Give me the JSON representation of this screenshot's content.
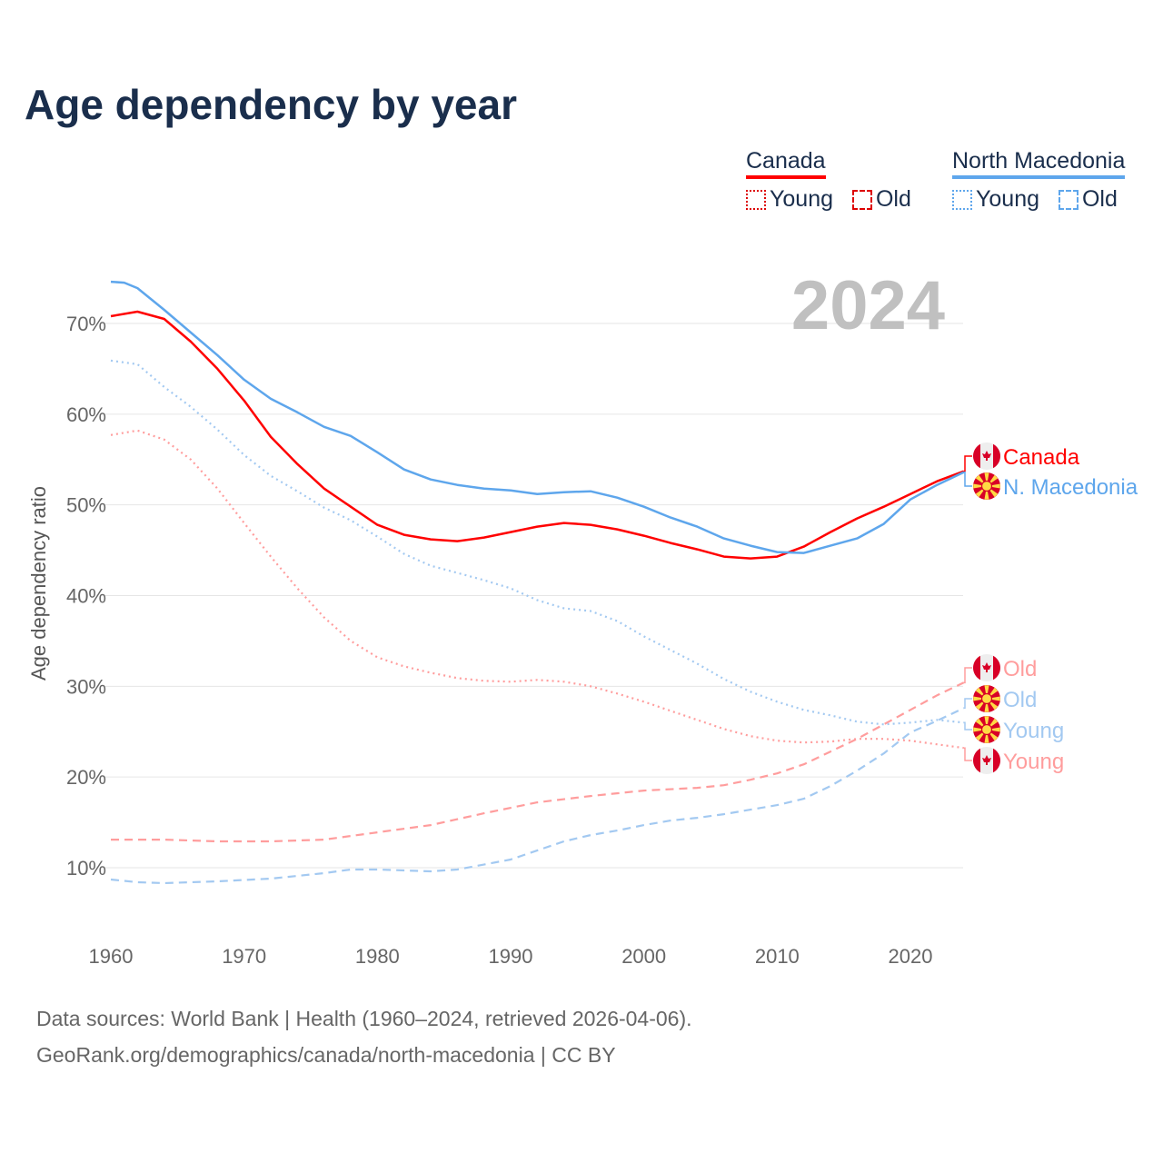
{
  "title": "Age dependency by year",
  "legend": {
    "groups": [
      {
        "name": "Canada",
        "color": "#ff0000",
        "items": [
          {
            "label": "Young",
            "style": "dotted"
          },
          {
            "label": "Old",
            "style": "dashed"
          }
        ]
      },
      {
        "name": "North Macedonia",
        "color": "#5ea6ec",
        "items": [
          {
            "label": "Young",
            "style": "dotted"
          },
          {
            "label": "Old",
            "style": "dashed"
          }
        ]
      }
    ]
  },
  "year_watermark": "2024",
  "footer": {
    "line1": "Data sources: World Bank | Health (1960–2024, retrieved 2026-04-06).",
    "line2": "GeoRank.org/demographics/canada/north-macedonia | CC BY"
  },
  "chart_data": {
    "type": "line",
    "title": "Age dependency by year",
    "xlabel": "",
    "ylabel": "Age dependency ratio",
    "xlim": [
      1960,
      2024
    ],
    "ylim": [
      3,
      78
    ],
    "grid": true,
    "x_ticks": [
      1960,
      1970,
      1980,
      1990,
      2000,
      2010,
      2020
    ],
    "y_ticks": [
      10,
      20,
      30,
      40,
      50,
      60,
      70
    ],
    "y_tick_labels": [
      "10%",
      "20%",
      "30%",
      "40%",
      "50%",
      "60%",
      "70%"
    ],
    "series": [
      {
        "name": "Canada",
        "end_label": "Canada",
        "flag": "canada",
        "color": "#ff0000",
        "style": "solid",
        "x": [
          1960,
          1962,
          1964,
          1966,
          1968,
          1970,
          1972,
          1974,
          1976,
          1978,
          1980,
          1982,
          1984,
          1986,
          1988,
          1990,
          1992,
          1994,
          1996,
          1998,
          2000,
          2002,
          2004,
          2006,
          2008,
          2010,
          2012,
          2014,
          2016,
          2018,
          2020,
          2022,
          2024
        ],
        "y": [
          70.8,
          71.3,
          70.5,
          68.0,
          65.0,
          61.5,
          57.5,
          54.5,
          51.8,
          49.8,
          47.8,
          46.7,
          46.2,
          46.0,
          46.4,
          47.0,
          47.6,
          48.0,
          47.8,
          47.3,
          46.6,
          45.8,
          45.1,
          44.3,
          44.1,
          44.3,
          45.4,
          47.0,
          48.5,
          49.8,
          51.2,
          52.6,
          53.7
        ]
      },
      {
        "name": "North Macedonia",
        "end_label": "N. Macedonia",
        "flag": "north-macedonia",
        "color": "#5ea6ec",
        "style": "solid",
        "x": [
          1960,
          1961,
          1962,
          1964,
          1966,
          1968,
          1970,
          1972,
          1974,
          1976,
          1978,
          1980,
          1982,
          1984,
          1986,
          1988,
          1990,
          1992,
          1994,
          1996,
          1998,
          2000,
          2002,
          2004,
          2006,
          2008,
          2010,
          2012,
          2014,
          2016,
          2018,
          2020,
          2022,
          2024
        ],
        "y": [
          74.6,
          74.5,
          73.9,
          71.5,
          69.0,
          66.5,
          63.8,
          61.7,
          60.2,
          58.6,
          57.6,
          55.8,
          53.9,
          52.8,
          52.2,
          51.8,
          51.6,
          51.2,
          51.4,
          51.5,
          50.8,
          49.8,
          48.6,
          47.6,
          46.3,
          45.5,
          44.8,
          44.7,
          45.5,
          46.3,
          47.9,
          50.6,
          52.2,
          53.6
        ]
      },
      {
        "name": "Canada Old",
        "end_label": "Old",
        "flag": "canada",
        "color": "#ff9d9d",
        "style": "dashed",
        "x": [
          1960,
          1964,
          1968,
          1972,
          1976,
          1980,
          1984,
          1988,
          1992,
          1996,
          2000,
          2004,
          2006,
          2008,
          2010,
          2012,
          2014,
          2016,
          2018,
          2020,
          2022,
          2024
        ],
        "y": [
          13.1,
          13.1,
          12.9,
          12.9,
          13.1,
          13.9,
          14.7,
          16.0,
          17.2,
          17.9,
          18.5,
          18.8,
          19.1,
          19.7,
          20.4,
          21.4,
          22.8,
          24.2,
          25.8,
          27.4,
          29.0,
          30.4
        ]
      },
      {
        "name": "North Macedonia Old",
        "end_label": "Old",
        "flag": "north-macedonia",
        "color": "#a3c9f1",
        "style": "dashed",
        "x": [
          1960,
          1962,
          1964,
          1968,
          1972,
          1976,
          1978,
          1980,
          1984,
          1986,
          1990,
          1994,
          1996,
          1998,
          2000,
          2002,
          2004,
          2006,
          2008,
          2010,
          2012,
          2014,
          2016,
          2018,
          2020,
          2022,
          2024
        ],
        "y": [
          8.7,
          8.4,
          8.3,
          8.5,
          8.8,
          9.4,
          9.8,
          9.8,
          9.6,
          9.8,
          10.9,
          12.9,
          13.6,
          14.1,
          14.7,
          15.2,
          15.5,
          15.9,
          16.4,
          16.9,
          17.6,
          19.0,
          20.7,
          22.6,
          24.9,
          26.2,
          27.6
        ]
      },
      {
        "name": "North Macedonia Young",
        "end_label": "Young",
        "flag": "north-macedonia",
        "color": "#a3c9f1",
        "style": "dotted",
        "x": [
          1960,
          1962,
          1964,
          1966,
          1968,
          1970,
          1972,
          1974,
          1976,
          1978,
          1980,
          1982,
          1984,
          1986,
          1988,
          1990,
          1992,
          1994,
          1996,
          1998,
          2000,
          2002,
          2004,
          2006,
          2008,
          2010,
          2012,
          2014,
          2016,
          2018,
          2020,
          2022,
          2024
        ],
        "y": [
          65.9,
          65.5,
          63.0,
          60.8,
          58.3,
          55.5,
          53.2,
          51.5,
          49.7,
          48.3,
          46.5,
          44.6,
          43.3,
          42.5,
          41.7,
          40.8,
          39.5,
          38.6,
          38.3,
          37.2,
          35.5,
          34.0,
          32.5,
          30.8,
          29.4,
          28.3,
          27.4,
          26.8,
          26.1,
          25.8,
          26.0,
          26.3,
          26.0
        ]
      },
      {
        "name": "Canada Young",
        "end_label": "Young",
        "flag": "canada",
        "color": "#ff9d9d",
        "style": "dotted",
        "x": [
          1960,
          1962,
          1964,
          1966,
          1968,
          1970,
          1972,
          1974,
          1976,
          1978,
          1980,
          1982,
          1984,
          1986,
          1988,
          1990,
          1992,
          1994,
          1996,
          1998,
          2000,
          2002,
          2004,
          2006,
          2008,
          2010,
          2012,
          2014,
          2016,
          2018,
          2020,
          2022,
          2024
        ],
        "y": [
          57.7,
          58.2,
          57.2,
          55.0,
          51.8,
          48.0,
          44.3,
          40.8,
          37.6,
          35.0,
          33.2,
          32.2,
          31.5,
          30.9,
          30.6,
          30.5,
          30.7,
          30.5,
          30.0,
          29.2,
          28.3,
          27.3,
          26.3,
          25.3,
          24.5,
          24.0,
          23.8,
          23.9,
          24.2,
          24.2,
          24.0,
          23.6,
          23.2
        ]
      }
    ]
  }
}
